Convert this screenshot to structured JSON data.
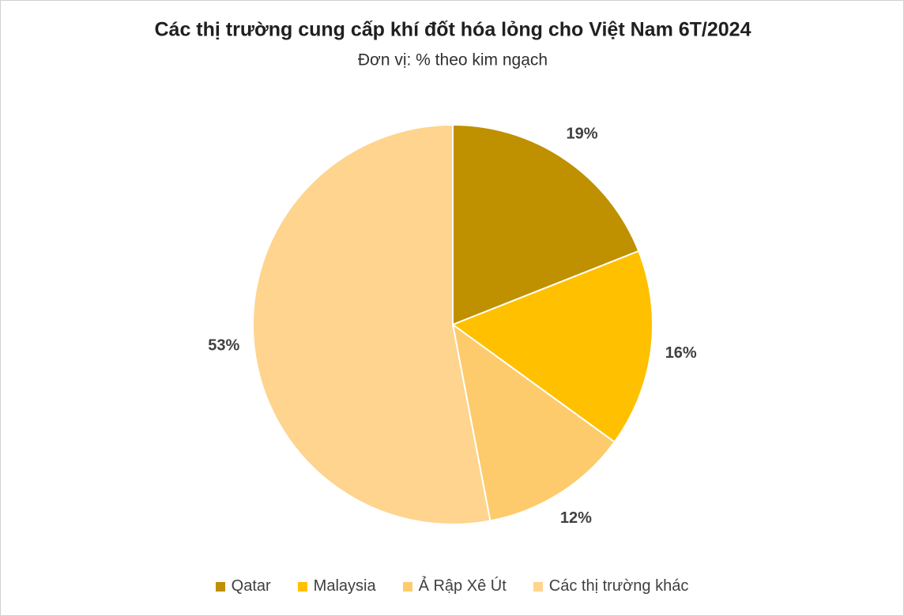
{
  "chart_data": {
    "type": "pie",
    "title": "Các thị trường cung cấp khí đốt hóa lỏng cho Việt Nam 6T/2024",
    "subtitle": "Đơn vị: % theo kim ngạch",
    "categories": [
      "Qatar",
      "Malaysia",
      "Ả Rập Xê Út",
      "Các thị trường khác"
    ],
    "values": [
      19,
      16,
      12,
      53
    ],
    "value_labels": [
      "19%",
      "16%",
      "12%",
      "53%"
    ],
    "colors": [
      "#bf9000",
      "#ffc000",
      "#fdcb6b",
      "#fed48e"
    ],
    "legend": "bottom"
  }
}
